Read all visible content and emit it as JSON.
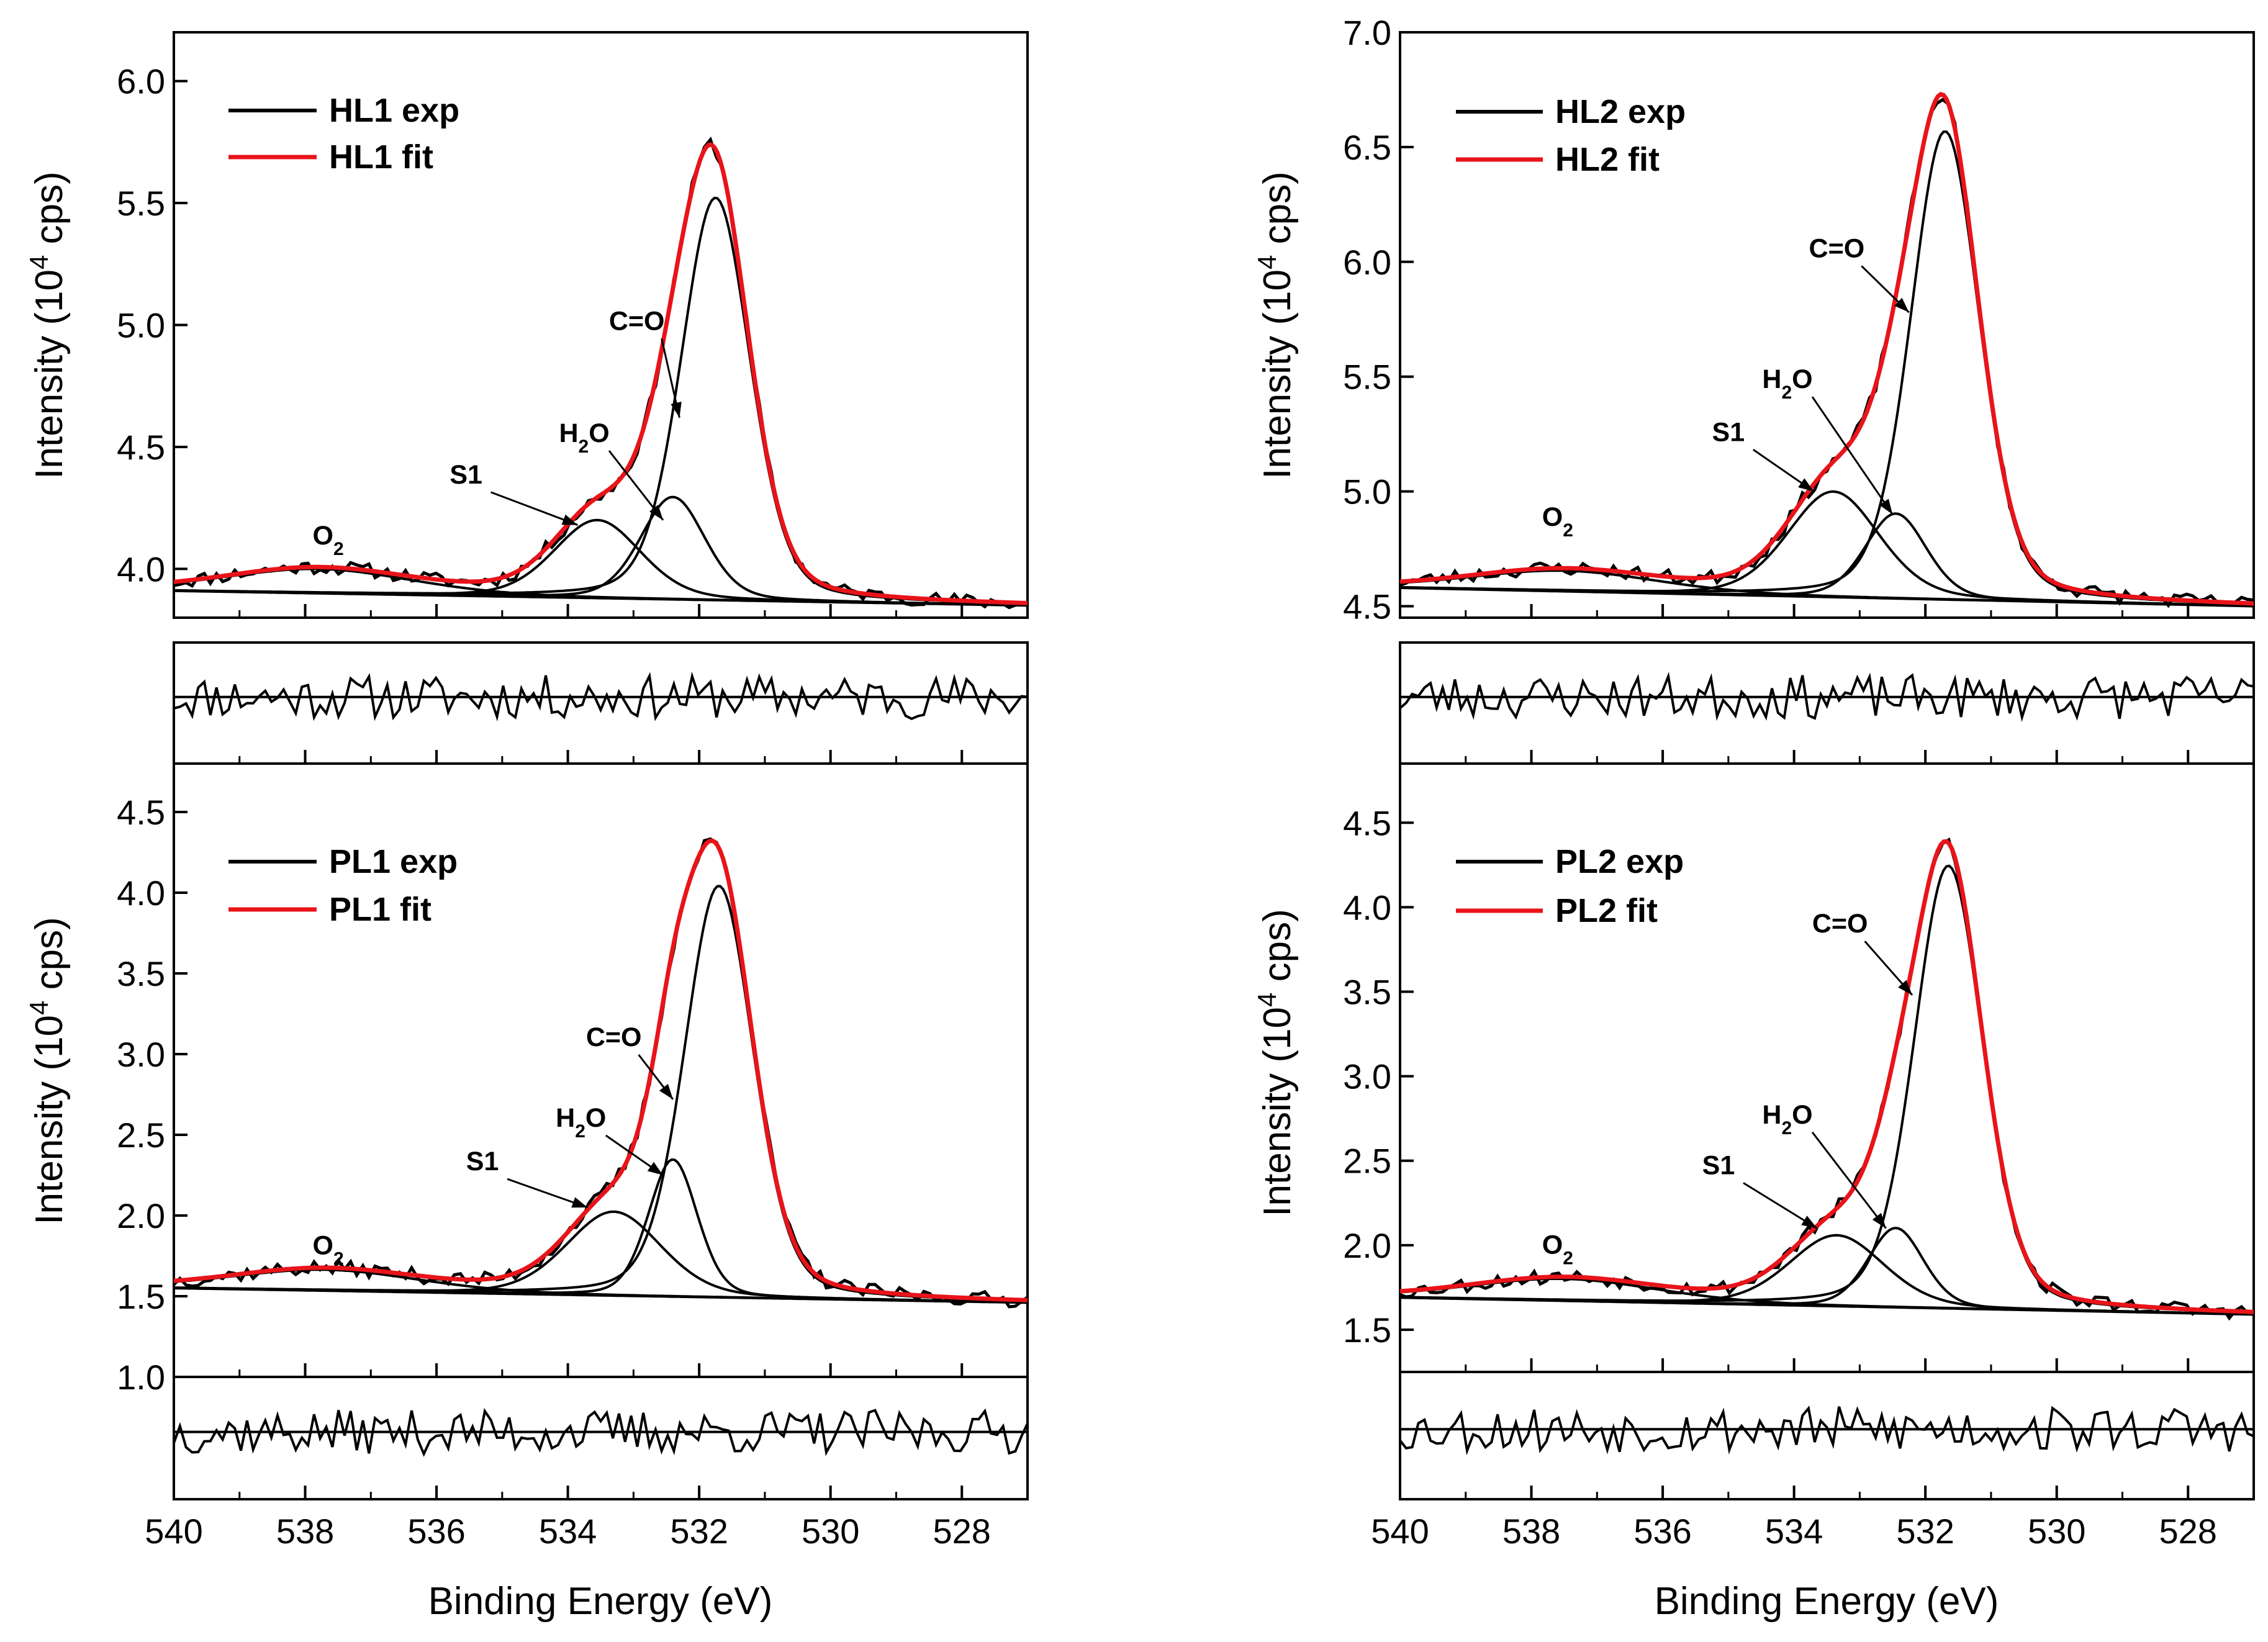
{
  "figure": {
    "x_axis_label": "Binding Energy (eV)",
    "y_axis_label": "Intensity (10",
    "y_axis_label_sup": "4",
    "y_axis_label_end": " cps)",
    "colors": {
      "exp": "#000000",
      "fit": "#e8141a",
      "component": "#000000"
    }
  },
  "chart_data": [
    {
      "id": "HL1",
      "type": "line",
      "title": "",
      "xlabel": "Binding Energy (eV)",
      "ylabel": "Intensity (10^4 cps)",
      "xlim": [
        540,
        527
      ],
      "ylim": [
        3.8,
        6.2
      ],
      "xticks": [
        540,
        538,
        536,
        534,
        532,
        530,
        528
      ],
      "yticks": [
        4.0,
        4.5,
        5.0,
        5.5,
        6.0
      ],
      "legend": [
        {
          "label": "HL1 exp",
          "color": "#000000"
        },
        {
          "label": "HL1 fit",
          "color": "#e8141a"
        }
      ],
      "legend_position": "top-left",
      "baseline": {
        "y_at_540": 3.91,
        "y_at_527": 3.85
      },
      "components": [
        {
          "name": "C=O",
          "center": 531.75,
          "height": 1.65,
          "width": 0.62
        },
        {
          "name": "H2O",
          "center": 532.4,
          "height": 0.42,
          "width": 0.58
        },
        {
          "name": "S1",
          "center": 533.55,
          "height": 0.32,
          "width": 0.78
        },
        {
          "name": "O2",
          "center": 537.8,
          "height": 0.1,
          "width": 1.7
        }
      ],
      "annotations": [
        {
          "label": "C=O",
          "x": 532.95,
          "y": 4.98,
          "arrow_to": [
            532.3,
            4.62
          ]
        },
        {
          "label": "H",
          "sub": "2",
          "post": "O",
          "x": 533.75,
          "y": 4.52,
          "arrow_to": [
            532.55,
            4.2
          ]
        },
        {
          "label": "S1",
          "x": 535.55,
          "y": 4.35,
          "arrow_to": [
            533.85,
            4.18
          ]
        },
        {
          "label": "O",
          "sub": "2",
          "post": "",
          "x": 537.65,
          "y": 4.1,
          "arrow_to": null
        }
      ],
      "residual_ylim": [
        -0.5,
        0.5
      ],
      "residual_seed": 11
    },
    {
      "id": "HL2",
      "type": "line",
      "title": "",
      "xlabel": "Binding Energy (eV)",
      "ylabel": "Intensity (10^4 cps)",
      "xlim": [
        540,
        527
      ],
      "ylim": [
        4.45,
        7.0
      ],
      "xticks": [
        540,
        538,
        536,
        534,
        532,
        530,
        528
      ],
      "yticks": [
        4.5,
        5.0,
        5.5,
        6.0,
        6.5,
        7.0
      ],
      "legend": [
        {
          "label": "HL2 exp",
          "color": "#000000"
        },
        {
          "label": "HL2 fit",
          "color": "#e8141a"
        }
      ],
      "legend_position": "top-left",
      "baseline": {
        "y_at_540": 4.58,
        "y_at_527": 4.5
      },
      "components": [
        {
          "name": "C=O",
          "center": 531.7,
          "height": 2.04,
          "width": 0.62
        },
        {
          "name": "H2O",
          "center": 532.45,
          "height": 0.37,
          "width": 0.55
        },
        {
          "name": "S1",
          "center": 533.4,
          "height": 0.46,
          "width": 0.82
        },
        {
          "name": "O2",
          "center": 537.5,
          "height": 0.09,
          "width": 1.7
        }
      ],
      "annotations": [
        {
          "label": "C=O",
          "x": 533.35,
          "y": 6.02,
          "arrow_to": [
            532.25,
            5.78
          ]
        },
        {
          "label": "H",
          "sub": "2",
          "post": "O",
          "x": 534.1,
          "y": 5.45,
          "arrow_to": [
            532.5,
            4.9
          ]
        },
        {
          "label": "S1",
          "x": 535.0,
          "y": 5.22,
          "arrow_to": [
            533.7,
            5.0
          ]
        },
        {
          "label": "O",
          "sub": "2",
          "post": "",
          "x": 537.6,
          "y": 4.85,
          "arrow_to": null
        }
      ],
      "residual_ylim": [
        -0.5,
        0.5
      ],
      "residual_seed": 23
    },
    {
      "id": "PL1",
      "type": "line",
      "title": "",
      "xlabel": "Binding Energy (eV)",
      "ylabel": "Intensity (10^4 cps)",
      "xlim": [
        540,
        527
      ],
      "ylim": [
        1.0,
        4.8
      ],
      "xticks": [
        540,
        538,
        536,
        534,
        532,
        530,
        528
      ],
      "yticks": [
        1.0,
        1.5,
        2.0,
        2.5,
        3.0,
        3.5,
        4.0,
        4.5
      ],
      "legend": [
        {
          "label": "PL1 exp",
          "color": "#000000"
        },
        {
          "label": "PL1 fit",
          "color": "#e8141a"
        }
      ],
      "legend_position": "top-left",
      "baseline": {
        "y_at_540": 1.55,
        "y_at_527": 1.46
      },
      "components": [
        {
          "name": "C=O",
          "center": 531.7,
          "height": 2.55,
          "width": 0.62
        },
        {
          "name": "H2O",
          "center": 532.4,
          "height": 0.85,
          "width": 0.44
        },
        {
          "name": "S1",
          "center": 533.3,
          "height": 0.52,
          "width": 0.85
        },
        {
          "name": "O2",
          "center": 537.7,
          "height": 0.13,
          "width": 1.7
        }
      ],
      "annotations": [
        {
          "label": "C=O",
          "x": 533.3,
          "y": 3.05,
          "arrow_to": [
            532.4,
            2.72
          ]
        },
        {
          "label": "H",
          "sub": "2",
          "post": "O",
          "x": 533.8,
          "y": 2.55,
          "arrow_to": [
            532.55,
            2.25
          ]
        },
        {
          "label": "S1",
          "x": 535.3,
          "y": 2.28,
          "arrow_to": [
            533.7,
            2.05
          ]
        },
        {
          "label": "O",
          "sub": "2",
          "post": "",
          "x": 537.65,
          "y": 1.76,
          "arrow_to": null
        }
      ],
      "residual_ylim": [
        -0.5,
        0.5
      ],
      "residual_seed": 37
    },
    {
      "id": "PL2",
      "type": "line",
      "title": "",
      "xlabel": "Binding Energy (eV)",
      "ylabel": "Intensity (10^4 cps)",
      "xlim": [
        540,
        527
      ],
      "ylim": [
        1.25,
        4.85
      ],
      "xticks": [
        540,
        538,
        536,
        534,
        532,
        530,
        528
      ],
      "yticks": [
        1.5,
        2.0,
        2.5,
        3.0,
        3.5,
        4.0,
        4.5
      ],
      "legend": [
        {
          "label": "PL2 exp",
          "color": "#000000"
        },
        {
          "label": "PL2 fit",
          "color": "#e8141a"
        }
      ],
      "legend_position": "top-left",
      "baseline": {
        "y_at_540": 1.69,
        "y_at_527": 1.59
      },
      "components": [
        {
          "name": "C=O",
          "center": 531.65,
          "height": 2.62,
          "width": 0.62
        },
        {
          "name": "H2O",
          "center": 532.45,
          "height": 0.47,
          "width": 0.5
        },
        {
          "name": "S1",
          "center": 533.35,
          "height": 0.42,
          "width": 0.85
        },
        {
          "name": "O2",
          "center": 537.5,
          "height": 0.13,
          "width": 1.7
        }
      ],
      "annotations": [
        {
          "label": "C=O",
          "x": 533.3,
          "y": 3.85,
          "arrow_to": [
            532.2,
            3.48
          ]
        },
        {
          "label": "H",
          "sub": "2",
          "post": "O",
          "x": 534.1,
          "y": 2.72,
          "arrow_to": [
            532.6,
            2.1
          ]
        },
        {
          "label": "S1",
          "x": 535.15,
          "y": 2.42,
          "arrow_to": [
            533.65,
            2.1
          ]
        },
        {
          "label": "O",
          "sub": "2",
          "post": "",
          "x": 537.6,
          "y": 1.95,
          "arrow_to": null
        }
      ],
      "residual_ylim": [
        -0.5,
        0.5
      ],
      "residual_seed": 53
    }
  ]
}
